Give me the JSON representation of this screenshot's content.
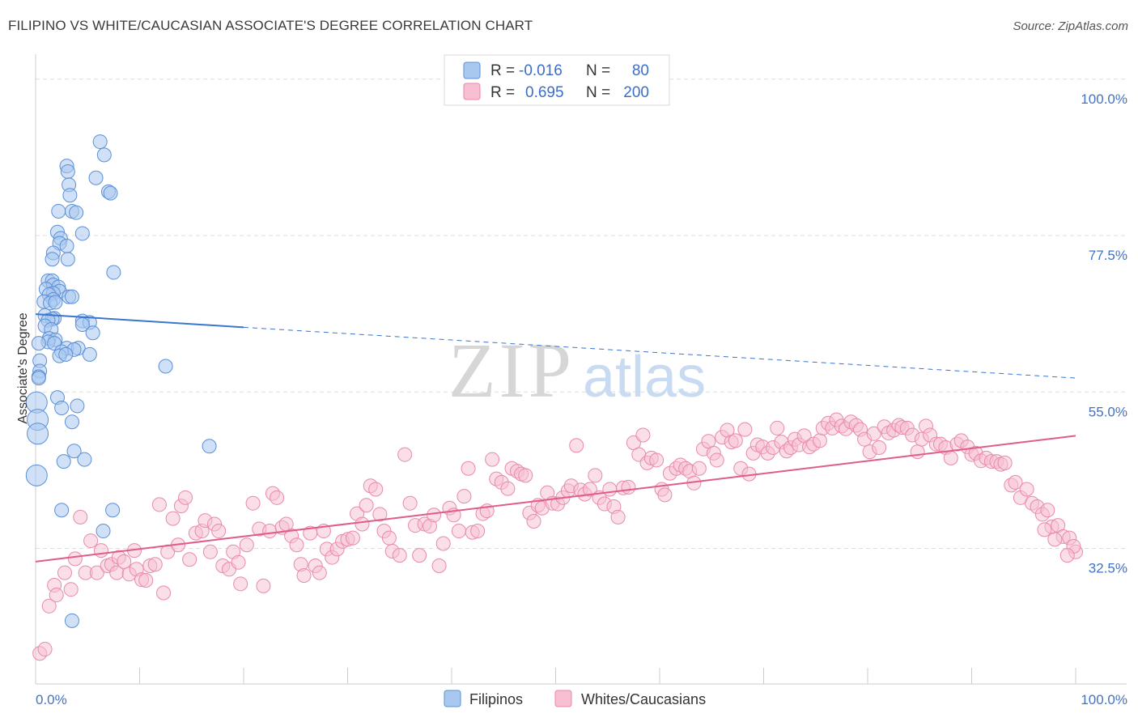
{
  "title": "FILIPINO VS WHITE/CAUCASIAN ASSOCIATE'S DEGREE CORRELATION CHART",
  "source": "Source: ZipAtlas.com",
  "watermark": {
    "zip": "ZIP",
    "atlas": "atlas"
  },
  "colors": {
    "blue_fill": "#a9c8f0",
    "blue_stroke": "#5b8fd6",
    "blue_line": "#3a75d0",
    "pink_fill": "#f7bfd1",
    "pink_stroke": "#e88aa8",
    "pink_line": "#e05c8a",
    "grid": "#dddddd",
    "axis_text": "#4472c4"
  },
  "legend": {
    "rows": [
      {
        "r_label": "R =",
        "r_value": "-0.016",
        "n_label": "N =",
        "n_value": "80",
        "series": "Filipinos"
      },
      {
        "r_label": "R =",
        "r_value": "0.695",
        "n_label": "N =",
        "n_value": "200",
        "series": "Whites/Caucasians"
      }
    ]
  },
  "bottom_legend": [
    "Filipinos",
    "Whites/Caucasians"
  ],
  "chart_data": {
    "type": "scatter",
    "title": "FILIPINO VS WHITE/CAUCASIAN ASSOCIATE'S DEGREE CORRELATION CHART",
    "xlabel": "",
    "ylabel": "Associate's Degree",
    "xlim": [
      0,
      100
    ],
    "ylim": [
      13,
      103
    ],
    "x_tick_labels": [
      "0.0%",
      "100.0%"
    ],
    "y_ticks": [
      32.5,
      55.0,
      77.5,
      100.0
    ],
    "y_tick_labels": [
      "32.5%",
      "55.0%",
      "77.5%",
      "100.0%"
    ],
    "grid": true,
    "legend_position": "top-center",
    "series": [
      {
        "name": "Filipinos",
        "trend": {
          "x": [
            0,
            20
          ],
          "y": [
            66.2,
            64.3
          ],
          "dashed_to": [
            100,
            57.0
          ]
        },
        "points": [
          [
            6.2,
            91.0
          ],
          [
            6.6,
            89.1
          ],
          [
            3.0,
            87.5
          ],
          [
            3.1,
            86.7
          ],
          [
            5.8,
            85.8
          ],
          [
            3.2,
            84.8
          ],
          [
            7.0,
            83.8
          ],
          [
            7.2,
            83.6
          ],
          [
            3.3,
            83.3
          ],
          [
            2.2,
            81.0
          ],
          [
            3.5,
            81.0
          ],
          [
            3.9,
            80.8
          ],
          [
            2.1,
            78.0
          ],
          [
            4.5,
            77.8
          ],
          [
            2.4,
            77.1
          ],
          [
            2.3,
            76.4
          ],
          [
            3.0,
            76.0
          ],
          [
            1.7,
            75.0
          ],
          [
            1.6,
            74.1
          ],
          [
            3.1,
            74.1
          ],
          [
            7.5,
            72.2
          ],
          [
            1.2,
            71.0
          ],
          [
            1.6,
            71.0
          ],
          [
            1.7,
            70.4
          ],
          [
            2.2,
            70.1
          ],
          [
            1.0,
            69.8
          ],
          [
            2.3,
            69.5
          ],
          [
            1.7,
            69.2
          ],
          [
            1.3,
            69.0
          ],
          [
            3.2,
            68.7
          ],
          [
            3.5,
            68.7
          ],
          [
            1.7,
            68.3
          ],
          [
            0.8,
            68.0
          ],
          [
            1.4,
            67.8
          ],
          [
            1.9,
            67.9
          ],
          [
            0.9,
            66.0
          ],
          [
            1.8,
            65.6
          ],
          [
            1.6,
            65.5
          ],
          [
            1.2,
            65.3
          ],
          [
            4.5,
            65.2
          ],
          [
            5.2,
            65.0
          ],
          [
            4.5,
            64.7
          ],
          [
            0.9,
            64.5
          ],
          [
            1.5,
            64.0
          ],
          [
            5.5,
            63.5
          ],
          [
            1.3,
            62.7
          ],
          [
            1.9,
            62.5
          ],
          [
            1.2,
            62.2
          ],
          [
            0.3,
            62.0
          ],
          [
            1.8,
            62.0
          ],
          [
            3.0,
            61.3
          ],
          [
            4.1,
            61.3
          ],
          [
            3.7,
            61.1
          ],
          [
            2.5,
            60.8
          ],
          [
            5.2,
            60.4
          ],
          [
            2.3,
            60.2
          ],
          [
            2.9,
            60.4
          ],
          [
            0.4,
            59.5
          ],
          [
            0.4,
            58.0
          ],
          [
            12.5,
            58.7
          ],
          [
            0.3,
            57.2
          ],
          [
            0.3,
            57.0
          ],
          [
            2.1,
            54.2
          ],
          [
            0.1,
            53.5
          ],
          [
            4.0,
            53.0
          ],
          [
            2.5,
            52.7
          ],
          [
            0.2,
            51.0
          ],
          [
            3.5,
            50.7
          ],
          [
            0.2,
            49.0
          ],
          [
            16.7,
            47.2
          ],
          [
            3.7,
            46.5
          ],
          [
            4.7,
            45.3
          ],
          [
            2.7,
            45.0
          ],
          [
            0.1,
            43.0
          ],
          [
            2.5,
            38.0
          ],
          [
            7.4,
            38.0
          ],
          [
            6.5,
            35.0
          ],
          [
            3.5,
            22.1
          ]
        ]
      },
      {
        "name": "Whites/Caucasians",
        "trend": {
          "x": [
            0,
            100
          ],
          "y": [
            30.6,
            48.7
          ]
        },
        "points": [
          [
            0.4,
            17.4
          ],
          [
            0.9,
            18.0
          ],
          [
            1.3,
            24.2
          ],
          [
            1.8,
            27.2
          ],
          [
            2.0,
            25.8
          ],
          [
            2.8,
            29.0
          ],
          [
            3.4,
            26.6
          ],
          [
            3.8,
            31.0
          ],
          [
            4.3,
            37.0
          ],
          [
            4.8,
            29.0
          ],
          [
            5.3,
            33.6
          ],
          [
            5.9,
            29.0
          ],
          [
            6.3,
            32.2
          ],
          [
            6.9,
            30.0
          ],
          [
            7.3,
            30.2
          ],
          [
            7.8,
            29.0
          ],
          [
            8.0,
            31.2
          ],
          [
            8.5,
            30.6
          ],
          [
            9.0,
            28.8
          ],
          [
            9.5,
            32.2
          ],
          [
            9.7,
            29.5
          ],
          [
            10.2,
            28.0
          ],
          [
            10.6,
            27.9
          ],
          [
            11.0,
            30.0
          ],
          [
            11.5,
            30.2
          ],
          [
            11.9,
            38.8
          ],
          [
            12.3,
            26.1
          ],
          [
            12.7,
            32.0
          ],
          [
            13.2,
            36.8
          ],
          [
            13.7,
            33.0
          ],
          [
            14.0,
            38.6
          ],
          [
            14.4,
            39.8
          ],
          [
            14.8,
            30.9
          ],
          [
            15.4,
            34.7
          ],
          [
            16.0,
            35.0
          ],
          [
            16.3,
            36.5
          ],
          [
            16.8,
            32.0
          ],
          [
            17.2,
            36.0
          ],
          [
            17.6,
            35.0
          ],
          [
            18.0,
            30.0
          ],
          [
            18.6,
            29.5
          ],
          [
            19.0,
            32.0
          ],
          [
            19.5,
            30.5
          ],
          [
            19.7,
            27.4
          ],
          [
            20.3,
            33.0
          ],
          [
            20.9,
            39.0
          ],
          [
            21.5,
            35.3
          ],
          [
            21.9,
            27.1
          ],
          [
            22.5,
            35.0
          ],
          [
            22.8,
            40.4
          ],
          [
            23.2,
            39.8
          ],
          [
            23.7,
            35.5
          ],
          [
            24.1,
            36.0
          ],
          [
            24.6,
            34.3
          ],
          [
            25.1,
            33.0
          ],
          [
            25.5,
            30.2
          ],
          [
            25.8,
            28.6
          ],
          [
            26.4,
            34.7
          ],
          [
            26.9,
            30.0
          ],
          [
            27.3,
            29.0
          ],
          [
            27.7,
            35.0
          ],
          [
            28.0,
            32.4
          ],
          [
            28.5,
            31.2
          ],
          [
            29.0,
            32.4
          ],
          [
            29.5,
            33.5
          ],
          [
            30.0,
            33.8
          ],
          [
            30.5,
            34.0
          ],
          [
            30.9,
            37.5
          ],
          [
            31.4,
            36.0
          ],
          [
            31.8,
            38.7
          ],
          [
            32.2,
            41.5
          ],
          [
            32.7,
            41.0
          ],
          [
            33.1,
            37.4
          ],
          [
            33.5,
            35.0
          ],
          [
            34.0,
            34.0
          ],
          [
            34.3,
            32.1
          ],
          [
            35.0,
            31.5
          ],
          [
            35.5,
            46.0
          ],
          [
            36.0,
            39.0
          ],
          [
            36.5,
            35.8
          ],
          [
            36.9,
            31.5
          ],
          [
            37.4,
            36.0
          ],
          [
            37.9,
            35.7
          ],
          [
            38.3,
            37.3
          ],
          [
            38.8,
            30.0
          ],
          [
            39.2,
            33.2
          ],
          [
            39.8,
            38.3
          ],
          [
            40.2,
            37.3
          ],
          [
            40.7,
            35.0
          ],
          [
            41.2,
            40.0
          ],
          [
            41.6,
            44.0
          ],
          [
            42.0,
            34.8
          ],
          [
            42.5,
            35.0
          ],
          [
            43.0,
            37.5
          ],
          [
            43.4,
            37.9
          ],
          [
            43.9,
            45.3
          ],
          [
            44.3,
            42.5
          ],
          [
            44.8,
            42.0
          ],
          [
            45.4,
            41.1
          ],
          [
            45.8,
            44.0
          ],
          [
            46.3,
            43.6
          ],
          [
            46.7,
            43.2
          ],
          [
            47.1,
            43.0
          ],
          [
            47.5,
            37.6
          ],
          [
            47.9,
            36.4
          ],
          [
            48.3,
            38.7
          ],
          [
            48.7,
            38.3
          ],
          [
            49.2,
            40.5
          ],
          [
            49.7,
            39.0
          ],
          [
            50.2,
            38.9
          ],
          [
            50.7,
            39.8
          ],
          [
            51.2,
            40.8
          ],
          [
            51.5,
            41.5
          ],
          [
            52.0,
            47.3
          ],
          [
            52.4,
            40.9
          ],
          [
            52.8,
            40.3
          ],
          [
            53.3,
            41.0
          ],
          [
            53.8,
            43.0
          ],
          [
            54.2,
            39.8
          ],
          [
            54.7,
            38.9
          ],
          [
            55.2,
            41.0
          ],
          [
            55.6,
            38.5
          ],
          [
            56.0,
            37.0
          ],
          [
            56.5,
            41.2
          ],
          [
            57.0,
            41.3
          ],
          [
            57.5,
            47.7
          ],
          [
            58.0,
            46.0
          ],
          [
            58.4,
            48.8
          ],
          [
            58.8,
            44.8
          ],
          [
            59.2,
            45.5
          ],
          [
            59.7,
            45.2
          ],
          [
            60.2,
            41.0
          ],
          [
            60.5,
            40.2
          ],
          [
            61.0,
            43.3
          ],
          [
            61.6,
            44.0
          ],
          [
            62.0,
            44.5
          ],
          [
            62.5,
            44.0
          ],
          [
            62.9,
            43.6
          ],
          [
            63.3,
            41.9
          ],
          [
            63.8,
            44.0
          ],
          [
            64.2,
            46.8
          ],
          [
            64.7,
            47.9
          ],
          [
            65.2,
            46.2
          ],
          [
            65.5,
            45.2
          ],
          [
            66.0,
            48.5
          ],
          [
            66.5,
            49.5
          ],
          [
            66.9,
            47.8
          ],
          [
            67.3,
            48.0
          ],
          [
            67.8,
            44.0
          ],
          [
            68.2,
            49.6
          ],
          [
            68.6,
            43.2
          ],
          [
            69.0,
            46.2
          ],
          [
            69.4,
            47.4
          ],
          [
            69.9,
            47.1
          ],
          [
            70.4,
            46.2
          ],
          [
            70.9,
            47.0
          ],
          [
            71.3,
            49.8
          ],
          [
            71.7,
            47.8
          ],
          [
            72.2,
            46.5
          ],
          [
            72.6,
            47.0
          ],
          [
            73.0,
            48.2
          ],
          [
            73.4,
            47.4
          ],
          [
            73.9,
            48.7
          ],
          [
            74.4,
            47.1
          ],
          [
            74.8,
            47.5
          ],
          [
            75.4,
            48.0
          ],
          [
            75.7,
            49.8
          ],
          [
            76.2,
            50.5
          ],
          [
            76.6,
            49.8
          ],
          [
            77.0,
            51.0
          ],
          [
            77.5,
            50.1
          ],
          [
            77.9,
            49.7
          ],
          [
            78.4,
            50.7
          ],
          [
            78.9,
            50.2
          ],
          [
            79.3,
            49.6
          ],
          [
            79.7,
            48.2
          ],
          [
            80.2,
            46.4
          ],
          [
            80.6,
            49.0
          ],
          [
            81.1,
            47.0
          ],
          [
            81.6,
            50.0
          ],
          [
            82.0,
            49.1
          ],
          [
            82.5,
            49.5
          ],
          [
            83.0,
            50.2
          ],
          [
            83.3,
            49.9
          ],
          [
            83.8,
            49.8
          ],
          [
            84.3,
            48.8
          ],
          [
            84.8,
            46.4
          ],
          [
            85.2,
            48.2
          ],
          [
            85.6,
            50.1
          ],
          [
            86.0,
            48.8
          ],
          [
            86.6,
            47.5
          ],
          [
            87.0,
            47.5
          ],
          [
            87.5,
            47.0
          ],
          [
            88.0,
            45.5
          ],
          [
            88.6,
            47.5
          ],
          [
            89.0,
            48.0
          ],
          [
            89.6,
            47.1
          ],
          [
            90.0,
            46.0
          ],
          [
            90.4,
            46.2
          ],
          [
            90.9,
            45.1
          ],
          [
            91.4,
            45.5
          ],
          [
            91.9,
            45.0
          ],
          [
            92.4,
            45.0
          ],
          [
            92.8,
            44.6
          ],
          [
            93.2,
            44.8
          ],
          [
            93.8,
            41.6
          ],
          [
            94.2,
            42.0
          ],
          [
            94.7,
            39.8
          ],
          [
            95.3,
            41.0
          ],
          [
            95.8,
            39.0
          ],
          [
            96.3,
            38.5
          ],
          [
            96.8,
            37.4
          ],
          [
            97.3,
            38.0
          ],
          [
            97.7,
            35.6
          ],
          [
            98.3,
            35.8
          ],
          [
            98.8,
            34.2
          ],
          [
            99.4,
            34.0
          ],
          [
            100.0,
            32.0
          ],
          [
            99.8,
            32.8
          ],
          [
            99.2,
            31.5
          ],
          [
            98.0,
            33.8
          ],
          [
            97.0,
            35.2
          ]
        ]
      }
    ]
  }
}
